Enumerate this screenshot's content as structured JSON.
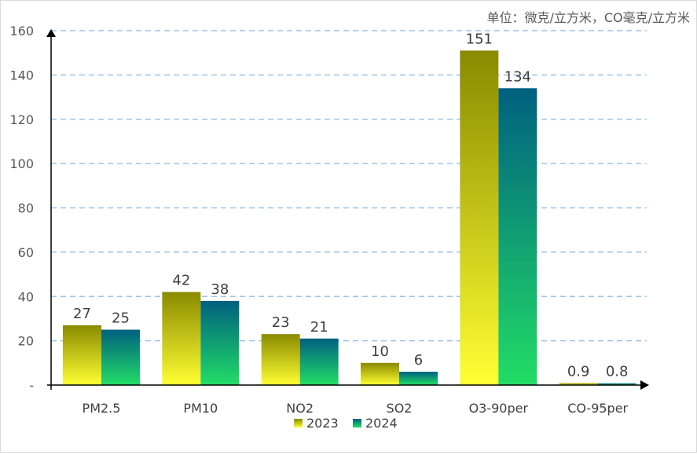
{
  "chart_data": {
    "type": "bar",
    "unit_note": "单位：微克/立方米，CO毫克/立方米",
    "categories": [
      "PM2.5",
      "PM10",
      "NO2",
      "SO2",
      "O3-90per",
      "CO-95per"
    ],
    "series": [
      {
        "name": "2023",
        "values": [
          27,
          42,
          23,
          10,
          151,
          0.9
        ],
        "labels": [
          "27",
          "42",
          "23",
          "10",
          "151",
          "0.9"
        ],
        "color_top": "#8a8a00",
        "color_bottom": "#ffff33"
      },
      {
        "name": "2024",
        "values": [
          25,
          38,
          21,
          6,
          134,
          0.8
        ],
        "labels": [
          "25",
          "38",
          "21",
          "6",
          "134",
          "0.8"
        ],
        "color_top": "#006080",
        "color_bottom": "#22dd66"
      }
    ],
    "ylim": [
      0,
      160
    ],
    "yticks": [
      0,
      20,
      40,
      60,
      80,
      100,
      120,
      140,
      160
    ],
    "ytick_labels": [
      "-",
      "20",
      "40",
      "60",
      "80",
      "100",
      "120",
      "140",
      "160"
    ],
    "grid": true,
    "grid_color": "#9dc3e6",
    "legend_position": "bottom-center"
  }
}
